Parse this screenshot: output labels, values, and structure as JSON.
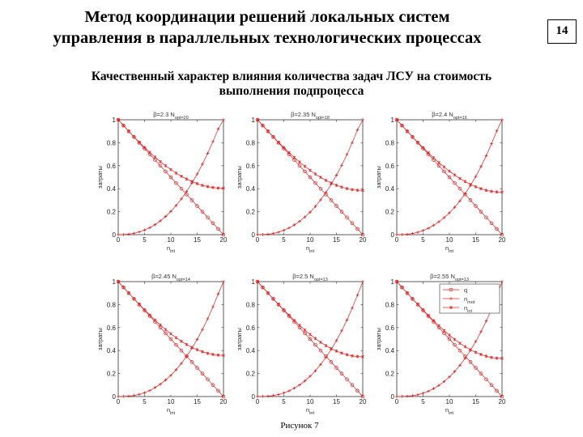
{
  "slide": {
    "title_line1": "Метод координации решений локальных систем",
    "title_line2": "управления в параллельных технологических процессах",
    "page_number": "14",
    "subtitle_line1": "Качественный характер влияния количества задач ЛСУ на стоимость",
    "subtitle_line2": "выполнения подпроцесса",
    "caption": "Рисунок 7"
  },
  "style": {
    "series_color": "#e02020"
  },
  "chart_data": [
    {
      "type": "line",
      "title": "β=2.3  N_opt=20",
      "xlabel": "n_int",
      "ylabel": "затраты",
      "xlim": [
        0,
        20
      ],
      "ylim": [
        0,
        1
      ],
      "beta": 2.3,
      "x": [
        0,
        1,
        2,
        3,
        4,
        5,
        6,
        7,
        8,
        9,
        10,
        11,
        12,
        13,
        14,
        15,
        16,
        17,
        18,
        19,
        20
      ],
      "series": [
        {
          "name": "q",
          "values": [
            1,
            0.95,
            0.9,
            0.85,
            0.8,
            0.75,
            0.7,
            0.65,
            0.6,
            0.55,
            0.5,
            0.45,
            0.4,
            0.35,
            0.3,
            0.25,
            0.2,
            0.15,
            0.1,
            0.05,
            0
          ]
        },
        {
          "name": "n_mot",
          "values": [
            0,
            0.001,
            0.005,
            0.012,
            0.024,
            0.04,
            0.061,
            0.087,
            0.12,
            0.158,
            0.203,
            0.254,
            0.311,
            0.376,
            0.448,
            0.528,
            0.613,
            0.709,
            0.81,
            0.92,
            1.0
          ]
        },
        {
          "name": "n_int",
          "values": [
            1,
            0.95,
            0.9,
            0.851,
            0.805,
            0.759,
            0.716,
            0.675,
            0.636,
            0.6,
            0.567,
            0.536,
            0.509,
            0.484,
            0.463,
            0.444,
            0.429,
            0.418,
            0.41,
            0.406,
            0.405
          ]
        }
      ]
    },
    {
      "type": "line",
      "title": "β=2.35  N_opt=18",
      "xlabel": "n_int",
      "ylabel": "затраты",
      "xlim": [
        0,
        20
      ],
      "ylim": [
        0,
        1
      ],
      "beta": 2.35,
      "x": [
        0,
        1,
        2,
        3,
        4,
        5,
        6,
        7,
        8,
        9,
        10,
        11,
        12,
        13,
        14,
        15,
        16,
        17,
        18,
        19,
        20
      ],
      "series": [
        {
          "name": "q",
          "values": [
            1,
            0.95,
            0.9,
            0.85,
            0.8,
            0.75,
            0.7,
            0.65,
            0.6,
            0.55,
            0.5,
            0.45,
            0.4,
            0.35,
            0.3,
            0.25,
            0.2,
            0.15,
            0.1,
            0.05,
            0
          ]
        },
        {
          "name": "n_mot",
          "values": [
            0,
            0.001,
            0.004,
            0.011,
            0.022,
            0.038,
            0.059,
            0.085,
            0.116,
            0.154,
            0.196,
            0.246,
            0.303,
            0.367,
            0.439,
            0.517,
            0.604,
            0.698,
            0.801,
            0.913,
            1.0
          ]
        },
        {
          "name": "n_int",
          "values": [
            1,
            0.95,
            0.9,
            0.851,
            0.804,
            0.758,
            0.714,
            0.672,
            0.632,
            0.595,
            0.56,
            0.528,
            0.499,
            0.473,
            0.45,
            0.43,
            0.414,
            0.401,
            0.392,
            0.387,
            0.385
          ]
        }
      ]
    },
    {
      "type": "line",
      "title": "β=2.4  N_opt=16",
      "xlabel": "n_int",
      "ylabel": "затраты",
      "xlim": [
        0,
        20
      ],
      "ylim": [
        0,
        1
      ],
      "beta": 2.4,
      "x": [
        0,
        1,
        2,
        3,
        4,
        5,
        6,
        7,
        8,
        9,
        10,
        11,
        12,
        13,
        14,
        15,
        16,
        17,
        18,
        19,
        20
      ],
      "series": [
        {
          "name": "q",
          "values": [
            1,
            0.95,
            0.9,
            0.85,
            0.8,
            0.75,
            0.7,
            0.65,
            0.6,
            0.55,
            0.5,
            0.45,
            0.4,
            0.35,
            0.3,
            0.25,
            0.2,
            0.15,
            0.1,
            0.05,
            0
          ]
        },
        {
          "name": "n_mot",
          "values": [
            0,
            0.001,
            0.004,
            0.01,
            0.021,
            0.036,
            0.056,
            0.082,
            0.112,
            0.148,
            0.19,
            0.239,
            0.294,
            0.357,
            0.428,
            0.506,
            0.593,
            0.687,
            0.791,
            0.903,
            1.0
          ]
        },
        {
          "name": "n_int",
          "values": [
            1,
            0.95,
            0.9,
            0.85,
            0.803,
            0.757,
            0.712,
            0.669,
            0.628,
            0.589,
            0.553,
            0.52,
            0.489,
            0.462,
            0.438,
            0.417,
            0.4,
            0.386,
            0.377,
            0.372,
            0.37
          ]
        }
      ]
    },
    {
      "type": "line",
      "title": "β=2.45  N_opt=14",
      "xlabel": "n_int",
      "ylabel": "затраты",
      "xlim": [
        0,
        20
      ],
      "ylim": [
        0,
        1
      ],
      "beta": 2.45,
      "x": [
        0,
        1,
        2,
        3,
        4,
        5,
        6,
        7,
        8,
        9,
        10,
        11,
        12,
        13,
        14,
        15,
        16,
        17,
        18,
        19,
        20
      ],
      "series": [
        {
          "name": "q",
          "values": [
            1,
            0.95,
            0.9,
            0.85,
            0.8,
            0.75,
            0.7,
            0.65,
            0.6,
            0.55,
            0.5,
            0.45,
            0.4,
            0.35,
            0.3,
            0.25,
            0.2,
            0.15,
            0.1,
            0.05,
            0
          ]
        },
        {
          "name": "n_mot",
          "values": [
            0,
            0.001,
            0.004,
            0.009,
            0.019,
            0.033,
            0.052,
            0.078,
            0.107,
            0.144,
            0.184,
            0.233,
            0.288,
            0.35,
            0.42,
            0.497,
            0.583,
            0.677,
            0.781,
            0.893,
            1.0
          ]
        },
        {
          "name": "n_int",
          "values": [
            1,
            0.95,
            0.9,
            0.85,
            0.803,
            0.755,
            0.709,
            0.665,
            0.623,
            0.583,
            0.546,
            0.512,
            0.481,
            0.453,
            0.428,
            0.407,
            0.39,
            0.376,
            0.366,
            0.36,
            0.358
          ]
        }
      ]
    },
    {
      "type": "line",
      "title": "β=2.5  N_opt=13",
      "xlabel": "n_int",
      "ylabel": "затраты",
      "xlim": [
        0,
        20
      ],
      "ylim": [
        0,
        1
      ],
      "beta": 2.5,
      "x": [
        0,
        1,
        2,
        3,
        4,
        5,
        6,
        7,
        8,
        9,
        10,
        11,
        12,
        13,
        14,
        15,
        16,
        17,
        18,
        19,
        20
      ],
      "series": [
        {
          "name": "q",
          "values": [
            1,
            0.95,
            0.9,
            0.85,
            0.8,
            0.75,
            0.7,
            0.65,
            0.6,
            0.55,
            0.5,
            0.45,
            0.4,
            0.35,
            0.3,
            0.25,
            0.2,
            0.15,
            0.1,
            0.05,
            0
          ]
        },
        {
          "name": "n_mot",
          "values": [
            0,
            0.001,
            0.003,
            0.009,
            0.018,
            0.031,
            0.049,
            0.073,
            0.101,
            0.136,
            0.177,
            0.224,
            0.279,
            0.341,
            0.41,
            0.487,
            0.572,
            0.666,
            0.77,
            0.883,
            1.0
          ]
        },
        {
          "name": "n_int",
          "values": [
            1,
            0.95,
            0.9,
            0.85,
            0.802,
            0.754,
            0.708,
            0.662,
            0.62,
            0.579,
            0.54,
            0.505,
            0.472,
            0.443,
            0.418,
            0.396,
            0.378,
            0.364,
            0.354,
            0.348,
            0.346
          ]
        }
      ]
    },
    {
      "type": "line",
      "title": "β=2.55  N_opt=13",
      "xlabel": "n_int",
      "ylabel": "затраты",
      "xlim": [
        0,
        20
      ],
      "ylim": [
        0,
        1
      ],
      "beta": 2.55,
      "legend": {
        "position": "top-right",
        "entries": [
          "q",
          "n_mot",
          "n_int"
        ]
      },
      "x": [
        0,
        1,
        2,
        3,
        4,
        5,
        6,
        7,
        8,
        9,
        10,
        11,
        12,
        13,
        14,
        15,
        16,
        17,
        18,
        19,
        20
      ],
      "series": [
        {
          "name": "q",
          "values": [
            1,
            0.95,
            0.9,
            0.85,
            0.8,
            0.75,
            0.7,
            0.65,
            0.6,
            0.55,
            0.5,
            0.45,
            0.4,
            0.35,
            0.3,
            0.25,
            0.2,
            0.15,
            0.1,
            0.05,
            0
          ]
        },
        {
          "name": "n_mot",
          "values": [
            0,
            0.001,
            0.003,
            0.008,
            0.016,
            0.029,
            0.046,
            0.069,
            0.097,
            0.131,
            0.171,
            0.218,
            0.272,
            0.333,
            0.402,
            0.479,
            0.564,
            0.657,
            0.76,
            0.872,
            1.0
          ]
        },
        {
          "name": "n_int",
          "values": [
            1,
            0.95,
            0.9,
            0.85,
            0.802,
            0.754,
            0.706,
            0.66,
            0.616,
            0.574,
            0.534,
            0.497,
            0.464,
            0.434,
            0.407,
            0.385,
            0.366,
            0.351,
            0.34,
            0.334,
            0.332
          ]
        }
      ]
    }
  ]
}
